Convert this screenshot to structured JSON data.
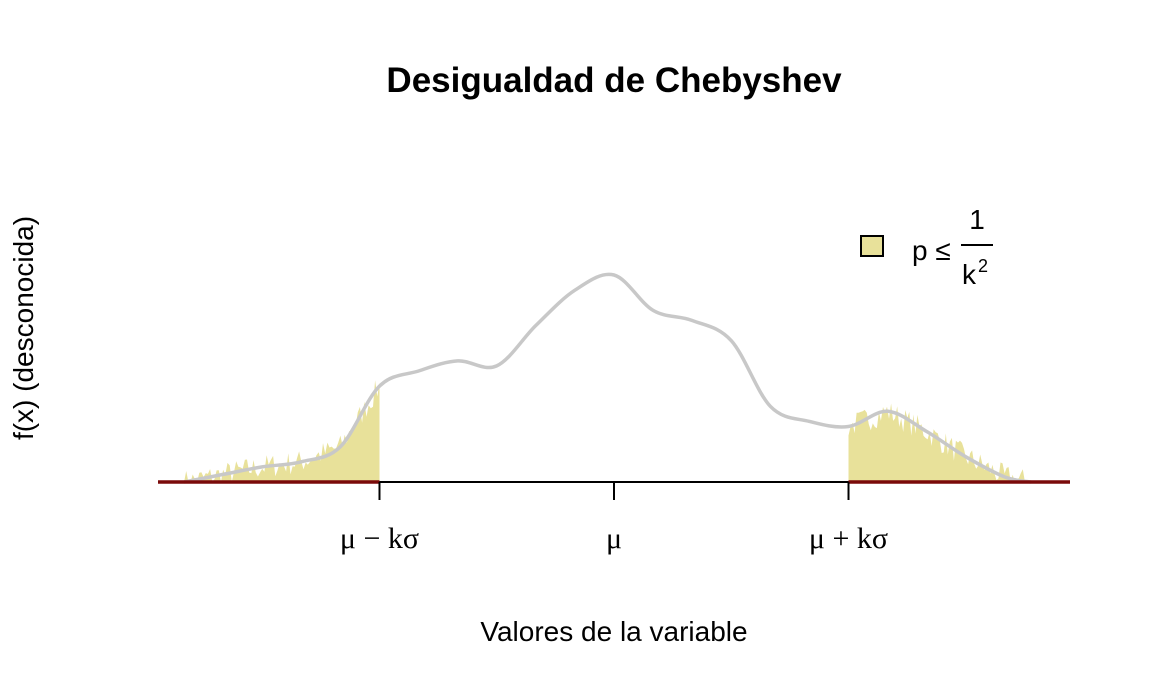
{
  "chart_data": {
    "type": "area",
    "title": "Desigualdad de Chebyshev",
    "xlabel": "Valores de la variable",
    "ylabel": "f(x) (desconocida)",
    "xlim": [
      -3.5,
      3.5
    ],
    "ylim": [
      0,
      0.42
    ],
    "x_ticks": [
      {
        "value": -1.8,
        "label": "μ − kσ"
      },
      {
        "value": 0,
        "label": "μ"
      },
      {
        "value": 1.8,
        "label": "μ + kσ"
      }
    ],
    "x": [
      -3.3,
      -3.0,
      -2.7,
      -2.4,
      -2.1,
      -1.8,
      -1.5,
      -1.2,
      -0.9,
      -0.6,
      -0.3,
      0.0,
      0.3,
      0.6,
      0.9,
      1.2,
      1.5,
      1.8,
      2.1,
      2.4,
      2.7,
      3.0,
      3.2
    ],
    "y": [
      0.0,
      0.015,
      0.03,
      0.04,
      0.07,
      0.19,
      0.22,
      0.24,
      0.23,
      0.31,
      0.38,
      0.41,
      0.34,
      0.32,
      0.28,
      0.15,
      0.12,
      0.11,
      0.14,
      0.1,
      0.05,
      0.01,
      0.0
    ],
    "shaded_regions": [
      [
        -3.3,
        -1.8
      ],
      [
        1.8,
        3.2
      ]
    ],
    "shade_color": "#E8E19A",
    "curve_color": "#C8C8C8",
    "baseline_color": "#7A0A0A",
    "legend": {
      "position": "top-right",
      "label_prefix": "p ≤",
      "numerator": "1",
      "denominator": "k",
      "exponent": "2"
    }
  }
}
